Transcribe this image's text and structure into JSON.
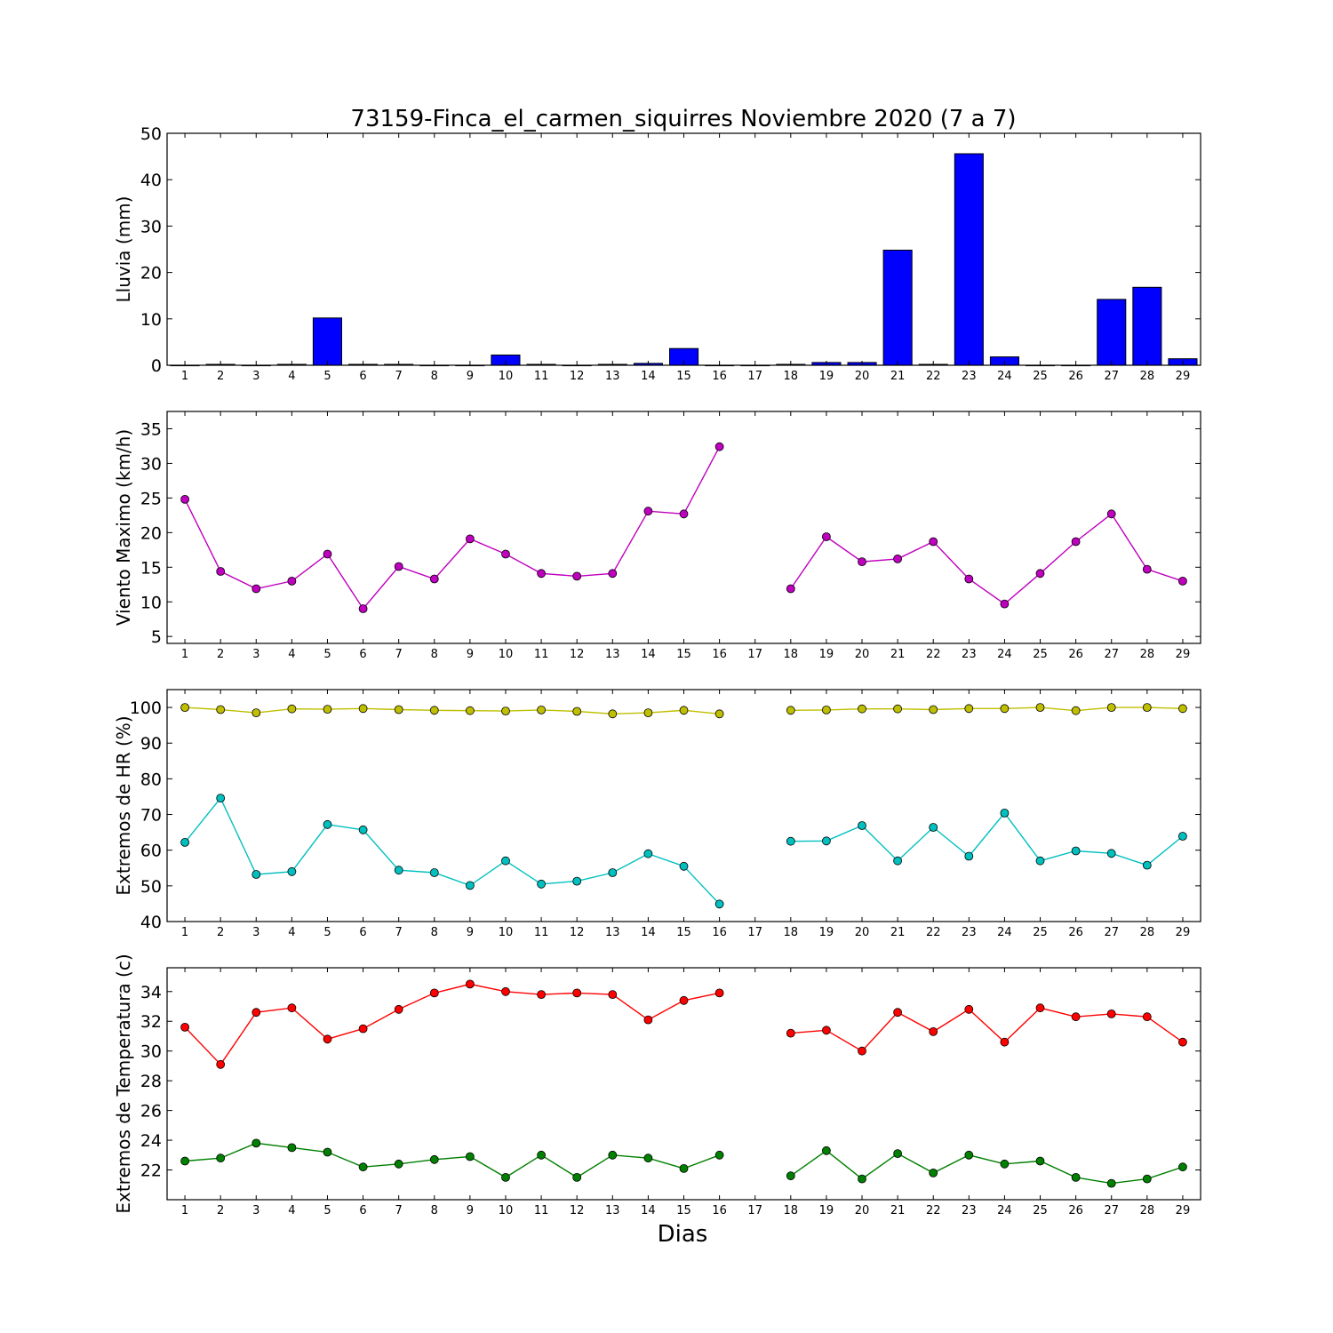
{
  "chart_data": {
    "title": "73159-Finca_el_carmen_siquirres Noviembre 2020  (7 a 7)",
    "xlabel": "Dias",
    "x_tick_labels": [
      "1",
      "2",
      "3",
      "4",
      "5",
      "6",
      "7",
      "8",
      "9",
      "10",
      "11",
      "12",
      "13",
      "14",
      "15",
      "16",
      "17",
      "18",
      "19",
      "20",
      "21",
      "22",
      "23",
      "24",
      "25",
      "26",
      "27",
      "28",
      "29"
    ],
    "panels": [
      {
        "type": "bar",
        "ylabel": "Lluvia (mm)",
        "ylim": [
          0,
          50
        ],
        "yticks": [
          0,
          10,
          20,
          30,
          40,
          50
        ],
        "series": [
          {
            "color": "#0000ff",
            "values": [
              0,
              0.2,
              0,
              0.2,
              10.2,
              0.2,
              0.2,
              0,
              0,
              2.2,
              0.2,
              0,
              0.2,
              0.4,
              3.6,
              0,
              0,
              0.2,
              0.6,
              0.6,
              24.8,
              0.2,
              45.6,
              1.8,
              0,
              0,
              14.2,
              16.8,
              1.4
            ]
          }
        ]
      },
      {
        "type": "line",
        "ylabel": "Viento Maximo (km/h)",
        "ylim": [
          4,
          37.5
        ],
        "yticks": [
          5,
          10,
          15,
          20,
          25,
          30,
          35
        ],
        "series": [
          {
            "color": "#bf00bf",
            "values": [
              24.8,
              14.4,
              11.9,
              13.0,
              16.9,
              9.0,
              15.1,
              13.3,
              19.1,
              16.9,
              14.1,
              13.7,
              14.1,
              23.1,
              22.7,
              32.4,
              null,
              11.9,
              19.4,
              15.8,
              16.2,
              18.7,
              13.3,
              9.7,
              14.1,
              18.7,
              22.7,
              14.7,
              13.0
            ]
          }
        ]
      },
      {
        "type": "line",
        "ylabel": "Extremos de HR (%)",
        "ylim": [
          40,
          105
        ],
        "yticks": [
          40,
          50,
          60,
          70,
          80,
          90,
          100
        ],
        "series": [
          {
            "color": "#bfbf00",
            "values": [
              100,
              99.4,
              98.5,
              99.6,
              99.5,
              99.7,
              99.4,
              99.2,
              99.1,
              99.0,
              99.3,
              98.9,
              98.2,
              98.5,
              99.2,
              98.2,
              null,
              99.2,
              99.3,
              99.6,
              99.6,
              99.4,
              99.7,
              99.7,
              100,
              99.1,
              100,
              100,
              99.7
            ]
          },
          {
            "color": "#00bfbf",
            "values": [
              62.2,
              74.6,
              53.2,
              54.0,
              67.2,
              65.7,
              54.4,
              53.7,
              50.1,
              57.0,
              50.5,
              51.3,
              53.7,
              59.0,
              55.5,
              44.9,
              null,
              62.5,
              62.6,
              66.9,
              57.0,
              66.4,
              58.3,
              70.4,
              57.0,
              59.8,
              59.1,
              55.8,
              63.9
            ]
          }
        ]
      },
      {
        "type": "line",
        "ylabel": "Extremos de Temperatura (c)",
        "ylim": [
          20,
          35.6
        ],
        "yticks": [
          22,
          24,
          26,
          28,
          30,
          32,
          34
        ],
        "series": [
          {
            "color": "#ff0000",
            "values": [
              31.6,
              29.1,
              32.6,
              32.9,
              30.8,
              31.5,
              32.8,
              33.9,
              34.5,
              34.0,
              33.8,
              33.9,
              33.8,
              32.1,
              33.4,
              33.9,
              null,
              31.2,
              31.4,
              30.0,
              32.6,
              31.3,
              32.8,
              30.6,
              32.9,
              32.3,
              32.5,
              32.3,
              30.6
            ]
          },
          {
            "color": "#008000",
            "values": [
              22.6,
              22.8,
              23.8,
              23.5,
              23.2,
              22.2,
              22.4,
              22.7,
              22.9,
              21.5,
              23.0,
              21.5,
              23.0,
              22.8,
              22.1,
              23.0,
              null,
              21.6,
              23.3,
              21.4,
              23.1,
              21.8,
              23.0,
              22.4,
              22.6,
              21.5,
              21.1,
              21.4,
              22.2
            ]
          }
        ]
      }
    ]
  }
}
